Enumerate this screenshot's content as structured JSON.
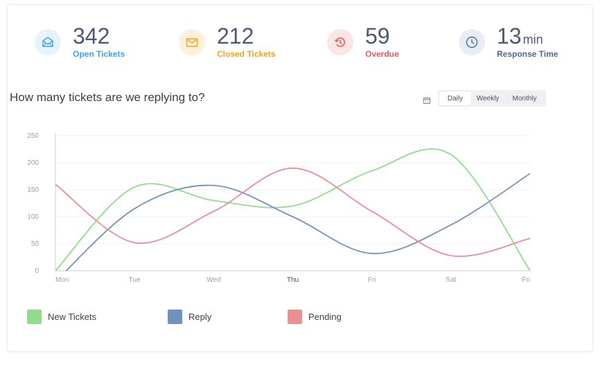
{
  "stats": [
    {
      "value": "342",
      "unit": "",
      "label": "Open Tickets",
      "color": "#3ea5e8",
      "bg": "#e6f2fc",
      "icon": "envelope-open-icon"
    },
    {
      "value": "212",
      "unit": "",
      "label": "Closed Tickets",
      "color": "#f2a51a",
      "bg": "#fdf1dc",
      "icon": "envelope-icon"
    },
    {
      "value": "59",
      "unit": "",
      "label": "Overdue",
      "color": "#ec5b5b",
      "bg": "#fbe6e6",
      "icon": "history-icon"
    },
    {
      "value": "13",
      "unit": "min",
      "label": "Response Time",
      "color": "#4a6a96",
      "bg": "#e8ecf3",
      "icon": "clock-icon"
    }
  ],
  "controls": {
    "options": [
      "Daily",
      "Weekly",
      "Monthly"
    ],
    "selected": "Daily",
    "icon": "calendar-icon"
  },
  "chart_data": {
    "type": "line",
    "title": "How many tickets are we replying to?",
    "categories": [
      "Mon",
      "Tue",
      "Wed",
      "Thu",
      "Fri",
      "Sat",
      "Fri"
    ],
    "ylim": [
      0,
      250
    ],
    "yticks": [
      0,
      50,
      100,
      150,
      200,
      250
    ],
    "grid": true,
    "legend_position": "bottom",
    "series": [
      {
        "name": "New Tickets",
        "color": "#8ddd8b",
        "values": [
          0,
          155,
          130,
          120,
          185,
          215,
          0
        ]
      },
      {
        "name": "Reply",
        "color": "#6f93bd",
        "values": [
          -20,
          115,
          158,
          100,
          32,
          85,
          180
        ]
      },
      {
        "name": "Pending",
        "color": "#ee8d92",
        "values": [
          160,
          52,
          110,
          190,
          110,
          28,
          60
        ]
      }
    ]
  }
}
